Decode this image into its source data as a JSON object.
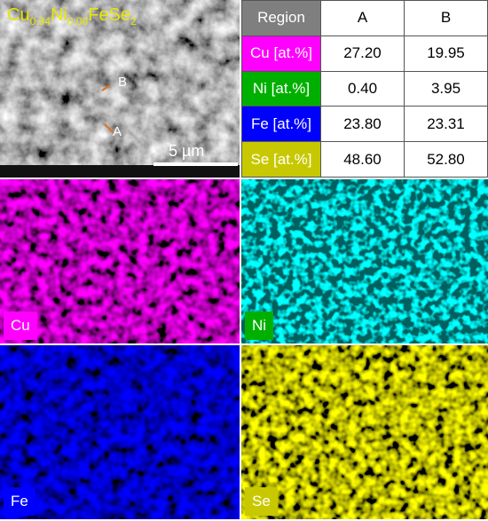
{
  "sem": {
    "formula": [
      "Cu",
      "0.94",
      "Ni",
      "0.06",
      "FeSe",
      "2"
    ],
    "point_a": "A",
    "point_b": "B",
    "scale": "5 µm"
  },
  "table": {
    "header": [
      "Region",
      "A",
      "B"
    ],
    "rows": [
      [
        "Cu [at.%]",
        "27.20",
        "19.95"
      ],
      [
        "Ni [at.%]",
        "0.40",
        "3.95"
      ],
      [
        "Fe [at.%]",
        "23.80",
        "23.31"
      ],
      [
        "Se [at.%]",
        "48.60",
        "52.80"
      ]
    ]
  },
  "maps": [
    "Cu",
    "Ni",
    "Fe",
    "Se"
  ]
}
